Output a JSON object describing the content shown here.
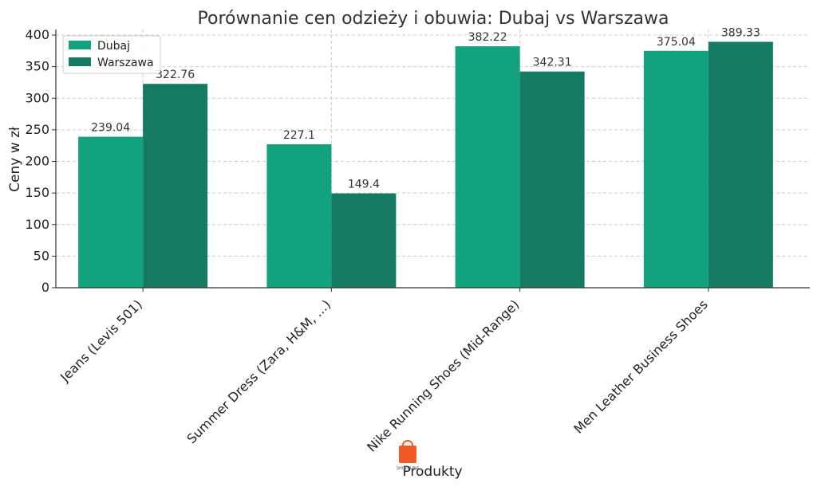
{
  "chart_data": {
    "type": "bar",
    "title": "Porównanie cen odzieży i obuwia: Dubaj vs Warszawa",
    "xlabel": "Produkty",
    "ylabel": "Ceny w zł",
    "categories": [
      "Jeans (Levis 501)",
      "Summer Dress (Zara, H&M, ...)",
      "Nike Running Shoes (Mid-Range)",
      "Men Leather Business Shoes"
    ],
    "series": [
      {
        "name": "Dubaj",
        "values": [
          239.04,
          227.1,
          382.22,
          375.04
        ],
        "color": "#12a27d"
      },
      {
        "name": "Warszawa",
        "values": [
          322.76,
          149.4,
          342.31,
          389.33
        ],
        "color": "#157a62"
      }
    ],
    "ylim": [
      0,
      400
    ],
    "yticks": [
      0,
      50,
      100,
      150,
      200,
      250,
      300,
      350,
      400
    ],
    "grid": true,
    "legend_position": "top-left"
  },
  "watermark": {
    "text": "SHOPPLINA",
    "color": "#f05a28"
  }
}
